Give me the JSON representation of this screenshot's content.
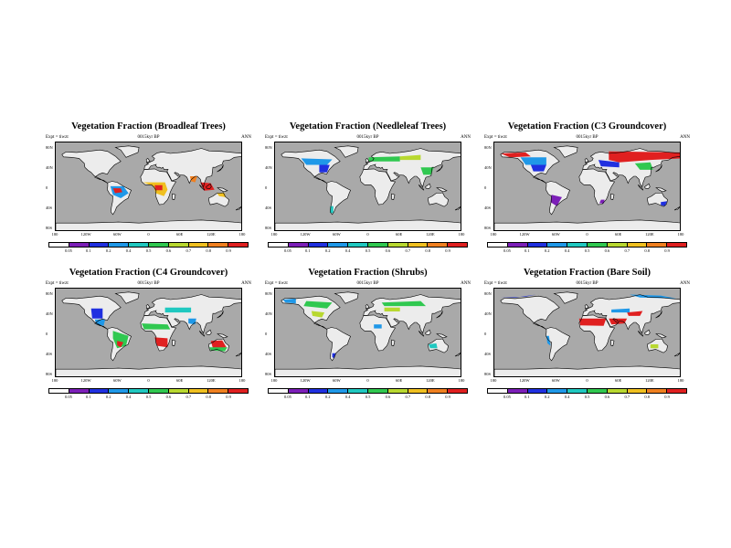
{
  "common": {
    "expt": "Expt = tiwzt",
    "time": "0015kyr BP",
    "season": "ANN",
    "lat_labels": [
      "80N",
      "40N",
      "0",
      "40S",
      "80S"
    ],
    "lon_labels": [
      "180",
      "120W",
      "60W",
      "0",
      "60E",
      "120E",
      "180"
    ],
    "colorbar_labels": [
      "0.05",
      "0.1",
      "0.2",
      "0.4",
      "0.5",
      "0.6",
      "0.7",
      "0.8",
      "0.9"
    ],
    "colorbar_colors": [
      "#ffffff",
      "#7c1fb8",
      "#2030e0",
      "#1f98e8",
      "#20c8c0",
      "#30c850",
      "#b8d830",
      "#f0c020",
      "#f08020",
      "#e02020"
    ],
    "ocean_color": "#a9a9a9",
    "land_color": "#ececec"
  },
  "panels": [
    {
      "title": "Vegetation Fraction (Broadleaf Trees)"
    },
    {
      "title": "Vegetation Fraction (Needleleaf Trees)"
    },
    {
      "title": "Vegetation Fraction (C3 Groundcover)"
    },
    {
      "title": "Vegetation Fraction (C4 Groundcover)"
    },
    {
      "title": "Vegetation Fraction (Shrubs)"
    },
    {
      "title": "Vegetation Fraction (Bare Soil)"
    }
  ]
}
